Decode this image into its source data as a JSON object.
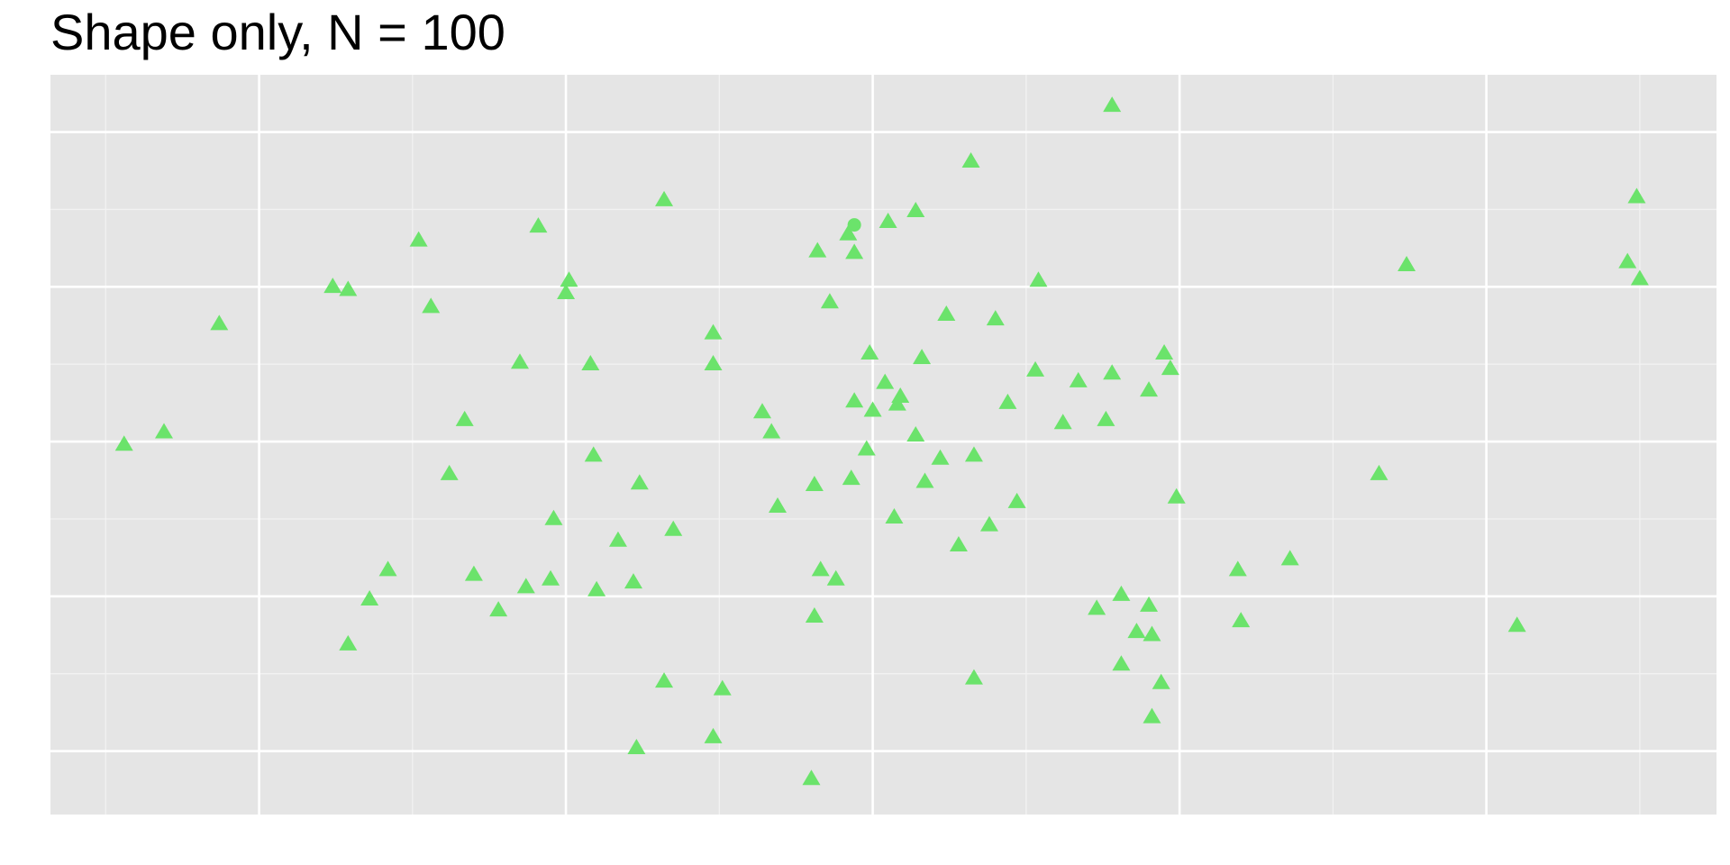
{
  "chart_data": {
    "type": "scatter",
    "title": "Shape only, N = 100",
    "xlim": [
      -2.68,
      2.75
    ],
    "ylim": [
      -2.41,
      2.37
    ],
    "xticks": [
      -2,
      -1,
      0,
      1,
      2
    ],
    "x_minor_ticks": [
      -2.5,
      -1.5,
      -0.5,
      0.5,
      1.5,
      2.5
    ],
    "yticks": [
      -2,
      -1,
      0,
      1,
      2
    ],
    "y_minor_ticks": [
      -1.5,
      -0.5,
      0.5,
      1.5
    ],
    "grid": true,
    "background": "#e5e5e5",
    "series": [
      {
        "shape": "triangle",
        "color": "#6be36b",
        "x": [
          0.78,
          0.32,
          -0.68,
          2.49,
          0.14,
          0.05,
          -1.09,
          -0.08,
          -1.48,
          -0.18,
          -0.06,
          2.46,
          1.74,
          0.54,
          -0.99,
          2.5,
          -1.76,
          -1.71,
          -1.0,
          -1.44,
          -0.14,
          0.24,
          0.4,
          -2.13,
          -0.52,
          -0.01,
          0.95,
          0.16,
          -1.15,
          -0.92,
          -0.52,
          0.53,
          0.97,
          0.78,
          0.67,
          0.04,
          0.9,
          0.09,
          -0.06,
          0.44,
          0.08,
          0.0,
          -0.36,
          -1.33,
          0.62,
          0.76,
          -2.31,
          -0.33,
          0.14,
          -2.44,
          -0.02,
          -0.91,
          0.22,
          0.33,
          -1.38,
          1.65,
          -0.76,
          -0.07,
          0.17,
          -0.19,
          0.99,
          0.47,
          -0.31,
          -1.04,
          0.07,
          0.38,
          -0.65,
          -0.83,
          0.28,
          1.36,
          -1.58,
          -1.3,
          1.19,
          -0.17,
          -0.12,
          -1.05,
          -1.13,
          -0.78,
          -0.9,
          -1.64,
          0.81,
          -1.22,
          0.73,
          0.9,
          -0.19,
          1.2,
          2.1,
          0.86,
          0.91,
          -1.71,
          0.81,
          -0.68,
          0.33,
          0.94,
          -0.49,
          0.91,
          -0.52,
          -0.77,
          -0.2
        ],
        "values": [
          2.17,
          1.81,
          1.56,
          1.58,
          1.49,
          1.42,
          1.39,
          1.34,
          1.3,
          1.23,
          1.22,
          1.16,
          1.14,
          1.04,
          1.04,
          1.05,
          1.0,
          0.98,
          0.96,
          0.87,
          0.9,
          0.82,
          0.79,
          0.76,
          0.7,
          0.57,
          0.57,
          0.54,
          0.51,
          0.5,
          0.5,
          0.46,
          0.47,
          0.44,
          0.39,
          0.38,
          0.33,
          0.29,
          0.26,
          0.25,
          0.24,
          0.2,
          0.19,
          0.14,
          0.12,
          0.14,
          0.06,
          0.06,
          0.04,
          -0.02,
          -0.05,
          -0.09,
          -0.11,
          -0.09,
          -0.21,
          -0.21,
          -0.27,
          -0.24,
          -0.26,
          -0.28,
          -0.36,
          -0.39,
          -0.42,
          -0.5,
          -0.49,
          -0.54,
          -0.57,
          -0.64,
          -0.67,
          -0.76,
          -0.83,
          -0.86,
          -0.83,
          -0.83,
          -0.89,
          -0.89,
          -0.94,
          -0.91,
          -0.96,
          -1.02,
          -0.99,
          -1.09,
          -1.08,
          -1.06,
          -1.13,
          -1.16,
          -1.19,
          -1.23,
          -1.25,
          -1.31,
          -1.44,
          -1.55,
          -1.53,
          -1.56,
          -1.6,
          -1.78,
          -1.91,
          -1.98,
          -2.18
        ]
      },
      {
        "shape": "circle",
        "color": "#6be36b",
        "x": [
          -0.06
        ],
        "values": [
          1.4
        ]
      }
    ]
  }
}
